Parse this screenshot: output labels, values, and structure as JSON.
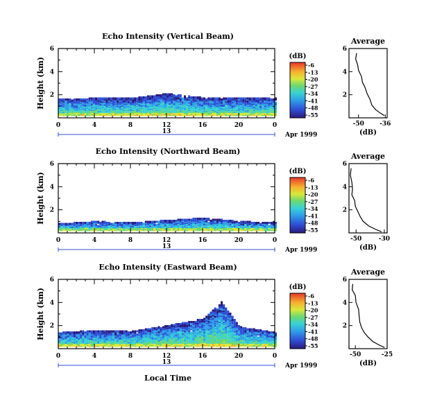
{
  "chart_data": [
    {
      "type": "heatmap",
      "title": "Echo Intensity (Vertical Beam)",
      "ylabel": "Height (km)",
      "ylim": [
        0,
        6
      ],
      "yticks": [
        2,
        4,
        6
      ],
      "xlim": [
        0,
        24
      ],
      "xticks": [
        "0",
        "4",
        "8",
        "12",
        "16",
        "20",
        "0"
      ],
      "date_day": "13",
      "date_month": "Apr 1999",
      "colorbar": {
        "unit": "(dB)",
        "ticks": [
          "-6",
          "-13",
          "-20",
          "-27",
          "-34",
          "-41",
          "-48",
          "-55"
        ]
      },
      "echo_profile": [
        {
          "t": 0,
          "top": 1.55
        },
        {
          "t": 4,
          "top": 1.6
        },
        {
          "t": 8,
          "top": 1.6
        },
        {
          "t": 12,
          "top": 2.0
        },
        {
          "t": 16,
          "top": 1.65
        },
        {
          "t": 20,
          "top": 1.6
        },
        {
          "t": 24,
          "top": 1.65
        }
      ],
      "average": {
        "title": "Average",
        "xlabel": "(dB)",
        "xlim": [
          -55,
          -35
        ],
        "xticks": [
          "-50",
          "-36"
        ],
        "ylim": [
          0,
          6
        ],
        "yticks": [
          2,
          4,
          6
        ],
        "x": [
          -51.0,
          -51.5,
          -50.5,
          -50.0,
          -48.5,
          -48.0,
          -46.5,
          -45.5,
          -44.0,
          -43.0,
          -41.0,
          -38.5,
          -36.5
        ],
        "y": [
          5.6,
          5.1,
          4.6,
          4.1,
          3.6,
          3.1,
          2.6,
          2.1,
          1.6,
          1.1,
          0.7,
          0.4,
          0.2
        ]
      }
    },
    {
      "type": "heatmap",
      "title": "Echo Intensity (Northward Beam)",
      "ylabel": "Height (km)",
      "ylim": [
        0,
        6
      ],
      "yticks": [
        2,
        4,
        6
      ],
      "xlim": [
        0,
        24
      ],
      "xticks": [
        "0",
        "4",
        "8",
        "12",
        "16",
        "20",
        "0"
      ],
      "date_day": "13",
      "date_month": "Apr 1999",
      "colorbar": {
        "unit": "(dB)",
        "ticks": [
          "-6",
          "-13",
          "-20",
          "-27",
          "-34",
          "-41",
          "-48",
          "-55"
        ]
      },
      "echo_profile": [
        {
          "t": 0,
          "top": 0.7
        },
        {
          "t": 4,
          "top": 0.9
        },
        {
          "t": 8,
          "top": 0.8
        },
        {
          "t": 12,
          "top": 1.0
        },
        {
          "t": 16,
          "top": 1.2
        },
        {
          "t": 20,
          "top": 0.9
        },
        {
          "t": 24,
          "top": 0.8
        }
      ],
      "average": {
        "title": "Average",
        "xlabel": "(dB)",
        "xlim": [
          -55,
          -28
        ],
        "xticks": [
          "-50",
          "-30"
        ],
        "ylim": [
          0,
          6
        ],
        "yticks": [
          2,
          4,
          6
        ],
        "x": [
          -53.5,
          -54.0,
          -53.0,
          -52.5,
          -53.0,
          -51.0,
          -50.5,
          -48.5,
          -47.0,
          -45.0,
          -41.0,
          -36.0,
          -32.0
        ],
        "y": [
          5.6,
          5.0,
          4.4,
          3.8,
          3.3,
          2.8,
          2.3,
          1.8,
          1.4,
          1.0,
          0.6,
          0.3,
          0.1
        ]
      }
    },
    {
      "type": "heatmap",
      "title": "Echo Intensity (Eastward Beam)",
      "ylabel": "Height (km)",
      "xlabel": "Local Time",
      "ylim": [
        0,
        6
      ],
      "yticks": [
        2,
        4,
        6
      ],
      "xlim": [
        0,
        24
      ],
      "xticks": [
        "0",
        "4",
        "8",
        "12",
        "16",
        "20",
        "0"
      ],
      "date_day": "13",
      "date_month": "Apr 1999",
      "colorbar": {
        "unit": "(dB)",
        "ticks": [
          "-6",
          "-13",
          "-20",
          "-27",
          "-34",
          "-41",
          "-48",
          "-55"
        ]
      },
      "echo_profile": [
        {
          "t": 0,
          "top": 1.3
        },
        {
          "t": 4,
          "top": 1.5
        },
        {
          "t": 8,
          "top": 1.4
        },
        {
          "t": 12,
          "top": 1.9
        },
        {
          "t": 16,
          "top": 2.5
        },
        {
          "t": 18,
          "top": 4.0
        },
        {
          "t": 20,
          "top": 1.8
        },
        {
          "t": 24,
          "top": 1.3
        }
      ],
      "average": {
        "title": "Average",
        "xlabel": "(dB)",
        "xlim": [
          -55,
          -25
        ],
        "xticks": [
          "-50",
          "-25"
        ],
        "ylim": [
          0,
          6
        ],
        "yticks": [
          2,
          4,
          6
        ],
        "x": [
          -52.0,
          -52.5,
          -50.0,
          -49.5,
          -47.5,
          -47.0,
          -46.5,
          -45.0,
          -43.0,
          -40.0,
          -36.0,
          -31.0,
          -27.0
        ],
        "y": [
          5.6,
          5.1,
          4.6,
          4.0,
          3.4,
          2.8,
          2.3,
          1.8,
          1.4,
          1.0,
          0.6,
          0.3,
          0.1
        ]
      }
    }
  ]
}
